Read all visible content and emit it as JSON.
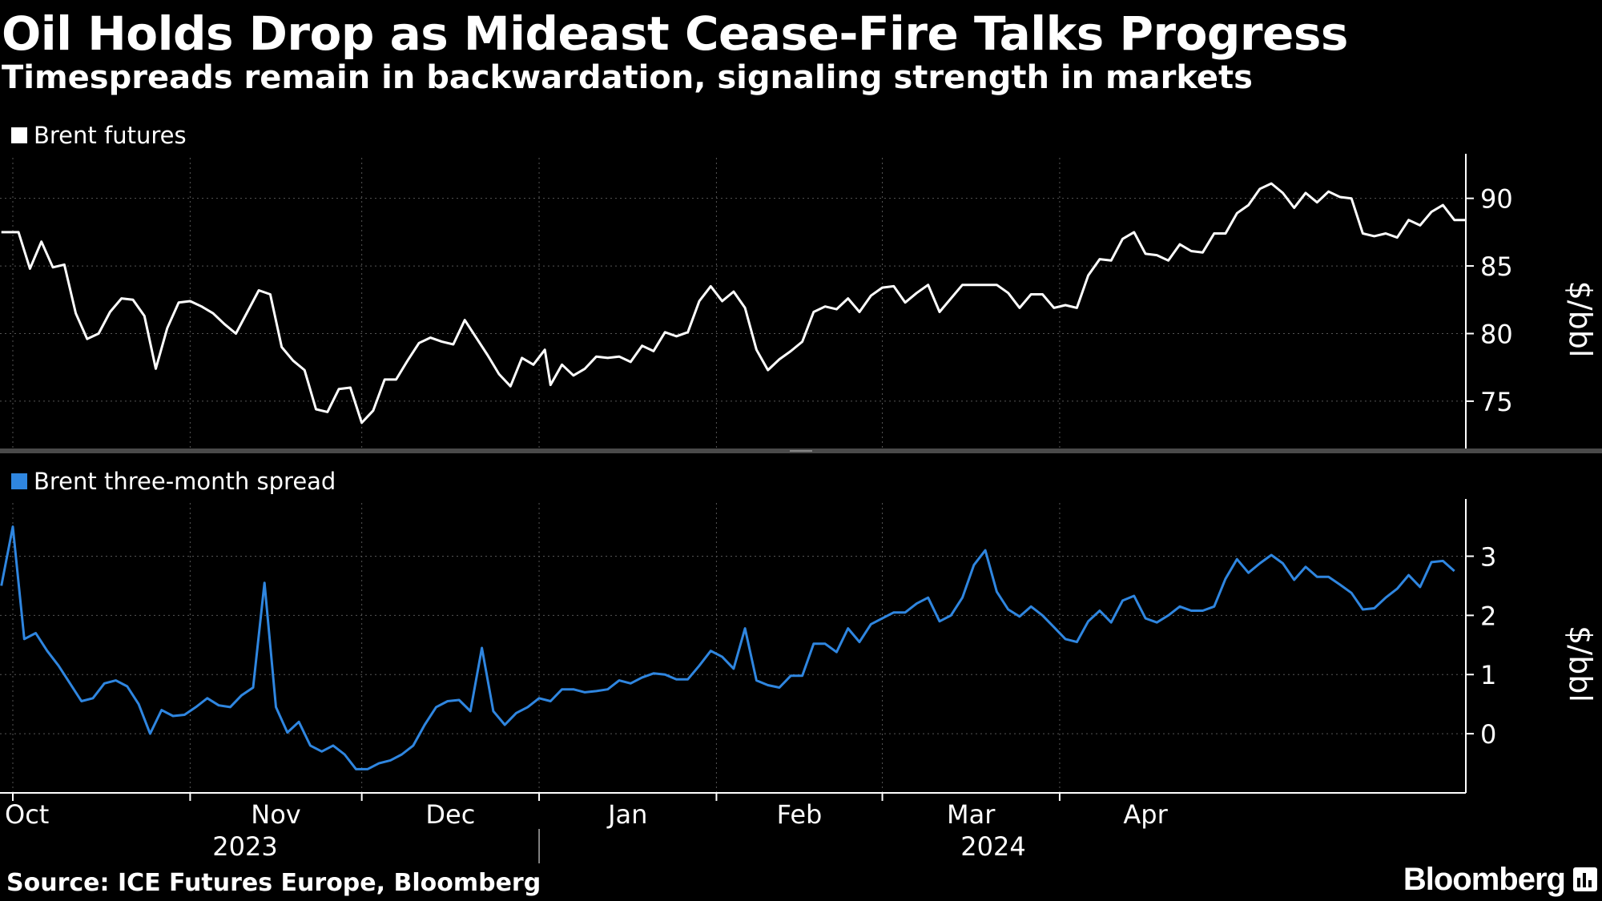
{
  "title": "Oil Holds Drop as Mideast Cease-Fire Talks Progress",
  "subtitle": "Timespreads remain in backwardation, signaling strength in markets",
  "source": "Source: ICE Futures Europe, Bloomberg",
  "brand": "Bloomberg",
  "colors": {
    "background": "#000000",
    "brent": "#ffffff",
    "spread": "#2f86e0",
    "grid": "#555555",
    "divider": "#4a4a4a"
  },
  "x_axis": {
    "months": [
      {
        "label": "Oct",
        "day": 0
      },
      {
        "label": "Nov",
        "day": 31
      },
      {
        "label": "Dec",
        "day": 61
      },
      {
        "label": "Jan",
        "day": 92
      },
      {
        "label": "Feb",
        "day": 123
      },
      {
        "label": "Mar",
        "day": 152
      },
      {
        "label": "Apr",
        "day": 183
      }
    ],
    "years": [
      {
        "label": "2023",
        "from": 0,
        "to": 91
      },
      {
        "label": "2024",
        "from": 92,
        "to": 212
      }
    ]
  },
  "chart_data": [
    {
      "type": "line",
      "legend": "Brent futures",
      "ylabel": "$/bbl",
      "ylim": [
        71.5,
        93
      ],
      "yticks": [
        75,
        80,
        85,
        90
      ],
      "grid": true,
      "series": [
        {
          "name": "Brent futures",
          "color": "#ffffff",
          "points": [
            [
              -2,
              87.5
            ],
            [
              1,
              87.5
            ],
            [
              3,
              84.8
            ],
            [
              5,
              86.8
            ],
            [
              7,
              84.9
            ],
            [
              9,
              85.1
            ],
            [
              11,
              81.5
            ],
            [
              13,
              79.6
            ],
            [
              15,
              80
            ],
            [
              17,
              81.6
            ],
            [
              19,
              82.6
            ],
            [
              21,
              82.5
            ],
            [
              23,
              81.3
            ],
            [
              25,
              77.4
            ],
            [
              27,
              80.4
            ],
            [
              29,
              82.3
            ],
            [
              31,
              82.4
            ],
            [
              33,
              82
            ],
            [
              35,
              81.5
            ],
            [
              37,
              80.7
            ],
            [
              39,
              80
            ],
            [
              41,
              81.6
            ],
            [
              43,
              83.2
            ],
            [
              45,
              82.9
            ],
            [
              47,
              79
            ],
            [
              49,
              78
            ],
            [
              51,
              77.3
            ],
            [
              53,
              74.4
            ],
            [
              55,
              74.2
            ],
            [
              57,
              75.9
            ],
            [
              59,
              76
            ],
            [
              61,
              73.4
            ],
            [
              63,
              74.3
            ],
            [
              65,
              76.6
            ],
            [
              67,
              76.6
            ],
            [
              69,
              78
            ],
            [
              71,
              79.3
            ],
            [
              73,
              79.7
            ],
            [
              75,
              79.4
            ],
            [
              77,
              79.2
            ],
            [
              79,
              81
            ],
            [
              81,
              79.7
            ],
            [
              83,
              78.4
            ],
            [
              85,
              77
            ],
            [
              87,
              76.1
            ],
            [
              89,
              78.2
            ],
            [
              91,
              77.7
            ],
            [
              93,
              78.8
            ],
            [
              94,
              76.2
            ],
            [
              96,
              77.7
            ],
            [
              98,
              76.9
            ],
            [
              100,
              77.4
            ],
            [
              102,
              78.3
            ],
            [
              104,
              78.2
            ],
            [
              106,
              78.3
            ],
            [
              108,
              77.9
            ],
            [
              110,
              79.1
            ],
            [
              112,
              78.7
            ],
            [
              114,
              80.1
            ],
            [
              116,
              79.8
            ],
            [
              118,
              80.1
            ],
            [
              120,
              82.4
            ],
            [
              122,
              83.5
            ],
            [
              124,
              82.4
            ],
            [
              126,
              83.1
            ],
            [
              128,
              81.9
            ],
            [
              130,
              78.8
            ],
            [
              132,
              77.3
            ],
            [
              134,
              78.1
            ],
            [
              136,
              78.7
            ],
            [
              138,
              79.4
            ],
            [
              140,
              81.6
            ],
            [
              142,
              82
            ],
            [
              144,
              81.8
            ],
            [
              146,
              82.6
            ],
            [
              148,
              81.6
            ],
            [
              150,
              82.8
            ],
            [
              152,
              83.4
            ],
            [
              154,
              83.5
            ],
            [
              156,
              82.3
            ],
            [
              158,
              83
            ],
            [
              160,
              83.6
            ],
            [
              162,
              81.6
            ],
            [
              164,
              82.6
            ],
            [
              166,
              83.6
            ],
            [
              168,
              83.6
            ],
            [
              170,
              83.6
            ],
            [
              172,
              83.6
            ],
            [
              174,
              83
            ],
            [
              176,
              81.9
            ],
            [
              178,
              82.9
            ],
            [
              180,
              82.9
            ],
            [
              182,
              81.9
            ],
            [
              184,
              82.1
            ],
            [
              186,
              81.9
            ],
            [
              188,
              84.3
            ],
            [
              190,
              85.5
            ],
            [
              192,
              85.4
            ],
            [
              194,
              87
            ],
            [
              196,
              87.5
            ],
            [
              198,
              85.9
            ],
            [
              200,
              85.8
            ],
            [
              202,
              85.4
            ],
            [
              204,
              86.6
            ],
            [
              206,
              86.1
            ],
            [
              208,
              86
            ],
            [
              210,
              87.4
            ],
            [
              212,
              87.4
            ],
            [
              214,
              88.9
            ],
            [
              216,
              89.5
            ],
            [
              218,
              90.7
            ],
            [
              220,
              91.1
            ],
            [
              222,
              90.4
            ],
            [
              224,
              89.3
            ],
            [
              226,
              90.4
            ],
            [
              228,
              89.7
            ],
            [
              230,
              90.5
            ],
            [
              232,
              90.1
            ],
            [
              234,
              90
            ],
            [
              236,
              87.4
            ],
            [
              238,
              87.2
            ],
            [
              240,
              87.4
            ],
            [
              242,
              87.1
            ],
            [
              244,
              88.4
            ],
            [
              246,
              88
            ],
            [
              248,
              89
            ],
            [
              250,
              89.5
            ],
            [
              252,
              88.4
            ],
            [
              254,
              88.4
            ]
          ]
        }
      ]
    },
    {
      "type": "line",
      "legend": "Brent three-month spread",
      "ylabel": "$/bbl",
      "ylim": [
        -1,
        3.9
      ],
      "yticks": [
        0,
        1,
        2,
        3
      ],
      "grid": true,
      "series": [
        {
          "name": "Brent three-month spread",
          "color": "#2f86e0",
          "points": [
            [
              -2,
              2.5
            ],
            [
              0,
              3.5
            ],
            [
              2,
              1.6
            ],
            [
              4,
              1.7
            ],
            [
              6,
              1.4
            ],
            [
              8,
              1.15
            ],
            [
              10,
              0.85
            ],
            [
              12,
              0.55
            ],
            [
              14,
              0.6
            ],
            [
              16,
              0.85
            ],
            [
              18,
              0.9
            ],
            [
              20,
              0.8
            ],
            [
              22,
              0.5
            ],
            [
              24,
              0
            ],
            [
              26,
              0.4
            ],
            [
              28,
              0.3
            ],
            [
              30,
              0.32
            ],
            [
              32,
              0.45
            ],
            [
              34,
              0.6
            ],
            [
              36,
              0.48
            ],
            [
              38,
              0.45
            ],
            [
              40,
              0.65
            ],
            [
              42,
              0.78
            ],
            [
              44,
              2.55
            ],
            [
              46,
              0.45
            ],
            [
              48,
              0.02
            ],
            [
              50,
              0.2
            ],
            [
              52,
              -0.2
            ],
            [
              54,
              -0.3
            ],
            [
              56,
              -0.2
            ],
            [
              58,
              -0.35
            ],
            [
              60,
              -0.6
            ],
            [
              62,
              -0.6
            ],
            [
              64,
              -0.5
            ],
            [
              66,
              -0.45
            ],
            [
              68,
              -0.35
            ],
            [
              70,
              -0.2
            ],
            [
              72,
              0.15
            ],
            [
              74,
              0.45
            ],
            [
              76,
              0.55
            ],
            [
              78,
              0.57
            ],
            [
              80,
              0.38
            ],
            [
              82,
              1.45
            ],
            [
              84,
              0.38
            ],
            [
              86,
              0.15
            ],
            [
              88,
              0.35
            ],
            [
              90,
              0.45
            ],
            [
              92,
              0.6
            ],
            [
              94,
              0.55
            ],
            [
              96,
              0.75
            ],
            [
              98,
              0.75
            ],
            [
              100,
              0.7
            ],
            [
              102,
              0.72
            ],
            [
              104,
              0.75
            ],
            [
              106,
              0.9
            ],
            [
              108,
              0.85
            ],
            [
              110,
              0.95
            ],
            [
              112,
              1.02
            ],
            [
              114,
              1
            ],
            [
              116,
              0.92
            ],
            [
              118,
              0.92
            ],
            [
              120,
              1.15
            ],
            [
              122,
              1.4
            ],
            [
              124,
              1.3
            ],
            [
              126,
              1.1
            ],
            [
              128,
              1.78
            ],
            [
              130,
              0.9
            ],
            [
              132,
              0.82
            ],
            [
              134,
              0.78
            ],
            [
              136,
              0.98
            ],
            [
              138,
              0.98
            ],
            [
              140,
              1.52
            ],
            [
              142,
              1.52
            ],
            [
              144,
              1.38
            ],
            [
              146,
              1.78
            ],
            [
              148,
              1.55
            ],
            [
              150,
              1.85
            ],
            [
              152,
              1.95
            ],
            [
              154,
              2.05
            ],
            [
              156,
              2.05
            ],
            [
              158,
              2.2
            ],
            [
              160,
              2.3
            ],
            [
              162,
              1.9
            ],
            [
              164,
              2
            ],
            [
              166,
              2.3
            ],
            [
              168,
              2.85
            ],
            [
              170,
              3.1
            ],
            [
              172,
              2.4
            ],
            [
              174,
              2.1
            ],
            [
              176,
              1.98
            ],
            [
              178,
              2.15
            ],
            [
              180,
              2
            ],
            [
              182,
              1.8
            ],
            [
              184,
              1.6
            ],
            [
              186,
              1.55
            ],
            [
              188,
              1.9
            ],
            [
              190,
              2.08
            ],
            [
              192,
              1.88
            ],
            [
              194,
              2.25
            ],
            [
              196,
              2.33
            ],
            [
              198,
              1.95
            ],
            [
              200,
              1.88
            ],
            [
              202,
              2
            ],
            [
              204,
              2.15
            ],
            [
              206,
              2.08
            ],
            [
              208,
              2.08
            ],
            [
              210,
              2.15
            ],
            [
              212,
              2.62
            ],
            [
              214,
              2.95
            ],
            [
              216,
              2.72
            ],
            [
              218,
              2.88
            ],
            [
              220,
              3.02
            ],
            [
              222,
              2.88
            ],
            [
              224,
              2.6
            ],
            [
              226,
              2.82
            ],
            [
              228,
              2.65
            ],
            [
              230,
              2.65
            ],
            [
              232,
              2.52
            ],
            [
              234,
              2.38
            ],
            [
              236,
              2.1
            ],
            [
              238,
              2.12
            ],
            [
              240,
              2.3
            ],
            [
              242,
              2.45
            ],
            [
              244,
              2.68
            ],
            [
              246,
              2.48
            ],
            [
              248,
              2.9
            ],
            [
              250,
              2.92
            ],
            [
              252,
              2.75
            ]
          ]
        }
      ]
    }
  ]
}
